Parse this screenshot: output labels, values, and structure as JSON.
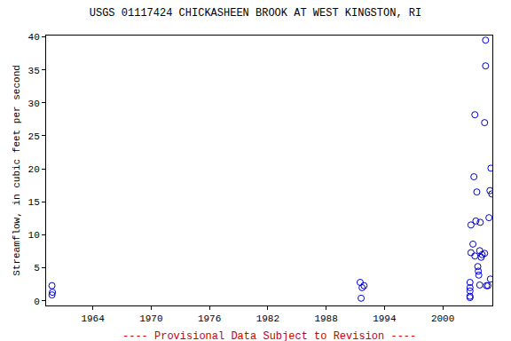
{
  "chart_data": {
    "type": "scatter",
    "title": "USGS 01117424 CHICKASHEEN BROOK AT WEST KINGSTON, RI",
    "y_label": "Streamflow, in cubic feet per second",
    "annotation": "---- Provisional Data Subject to Revision ----",
    "x": [
      1959.8,
      1959.85,
      1959.8,
      1991.5,
      1991.7,
      1991.9,
      1991.6,
      2002.8,
      2002.8,
      2002.8,
      2002.8,
      2002.8,
      2002.9,
      2002.9,
      2003.1,
      2003.2,
      2003.3,
      2003.4,
      2003.5,
      2003.3,
      2003.6,
      2003.65,
      2003.7,
      2003.8,
      2003.85,
      2003.8,
      2003.95,
      2004.05,
      2004.3,
      2004.3,
      2004.4,
      2004.4,
      2004.5,
      2004.65,
      2004.75,
      2004.85,
      2004.9,
      2004.95,
      2005.04
    ],
    "values": [
      2.3,
      1.3,
      0.9,
      2.8,
      2.0,
      2.3,
      0.4,
      0.5,
      0.7,
      1.5,
      2.0,
      2.8,
      7.3,
      11.5,
      8.6,
      18.8,
      28.2,
      12.1,
      16.5,
      6.8,
      5.2,
      4.5,
      3.9,
      2.4,
      11.9,
      7.6,
      6.6,
      7.0,
      7.2,
      27.0,
      35.6,
      39.5,
      2.3,
      2.3,
      12.6,
      16.7,
      3.3,
      20.1,
      16.2
    ],
    "color": "#0000cc",
    "marker": "circle-open",
    "xlim": [
      1959.2,
      2005.1
    ],
    "xticks": [
      1964,
      1970,
      1976,
      1982,
      1988,
      1994,
      2000
    ],
    "ylim": [
      -0.7,
      40.2
    ],
    "yticks": [
      0,
      5,
      10,
      15,
      20,
      25,
      30,
      35,
      40
    ],
    "grid": false
  }
}
